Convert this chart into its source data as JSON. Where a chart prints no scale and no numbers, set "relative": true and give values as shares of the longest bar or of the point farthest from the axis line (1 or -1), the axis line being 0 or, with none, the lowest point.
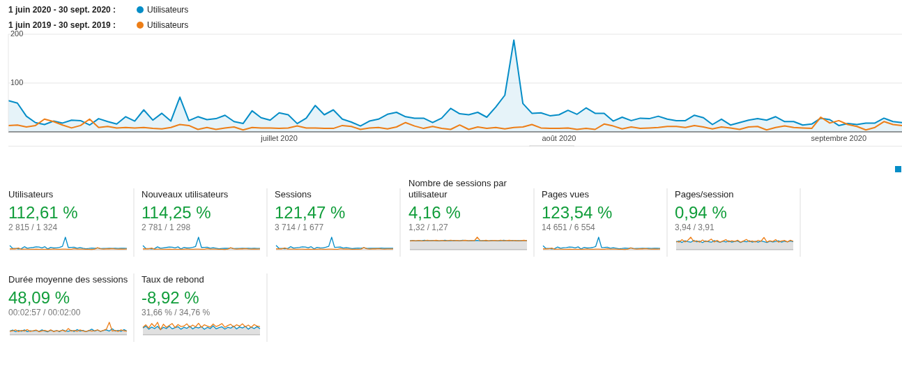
{
  "chart_data": [
    {
      "type": "line",
      "legend": "top left",
      "grid": "y",
      "annotations": [
        "1 juin 2020 - 30 sept. 2020 :",
        "1 juin 2019 - 30 sept. 2019 :"
      ],
      "x": [
        "2020-06-01",
        "2020-06-02",
        "2020-06-03",
        "2020-06-04",
        "2020-06-05",
        "2020-06-06",
        "2020-06-07",
        "2020-06-08",
        "2020-06-09",
        "2020-06-10",
        "2020-06-11",
        "2020-06-12",
        "2020-06-13",
        "2020-06-14",
        "2020-06-15",
        "2020-06-16",
        "2020-06-17",
        "2020-06-18",
        "2020-06-19",
        "2020-06-20",
        "2020-06-21",
        "2020-06-22",
        "2020-06-23",
        "2020-06-24",
        "2020-06-25",
        "2020-06-26",
        "2020-06-27",
        "2020-06-28",
        "2020-06-29",
        "2020-06-30",
        "2020-07-01",
        "2020-07-02",
        "2020-07-03",
        "2020-07-04",
        "2020-07-05",
        "2020-07-06",
        "2020-07-07",
        "2020-07-08",
        "2020-07-09",
        "2020-07-10",
        "2020-07-11",
        "2020-07-12",
        "2020-07-13",
        "2020-07-14",
        "2020-07-15",
        "2020-07-16",
        "2020-07-17",
        "2020-07-18",
        "2020-07-19",
        "2020-07-20",
        "2020-07-21",
        "2020-07-22",
        "2020-07-23",
        "2020-07-24",
        "2020-07-25",
        "2020-07-26",
        "2020-07-27",
        "2020-07-28",
        "2020-07-29",
        "2020-07-30",
        "2020-07-31",
        "2020-08-01",
        "2020-08-02",
        "2020-08-03",
        "2020-08-04",
        "2020-08-05",
        "2020-08-06",
        "2020-08-07",
        "2020-08-08",
        "2020-08-09",
        "2020-08-10",
        "2020-08-11",
        "2020-08-12",
        "2020-08-13",
        "2020-08-14",
        "2020-08-15",
        "2020-08-16",
        "2020-08-17",
        "2020-08-18",
        "2020-08-19",
        "2020-08-20",
        "2020-08-21",
        "2020-08-22",
        "2020-08-23",
        "2020-08-24",
        "2020-08-25",
        "2020-08-26",
        "2020-08-27",
        "2020-08-28",
        "2020-08-29",
        "2020-08-30",
        "2020-08-31",
        "2020-09-01",
        "2020-09-02",
        "2020-09-03",
        "2020-09-04",
        "2020-09-05",
        "2020-09-06",
        "2020-09-07",
        "2020-09-08"
      ],
      "xlim": [
        "2020-06-01",
        "2020-09-08"
      ],
      "xticks": [
        {
          "value": "2020-07-01",
          "label": "juillet 2020"
        },
        {
          "value": "2020-08-01",
          "label": "août 2020"
        },
        {
          "value": "2020-09-01",
          "label": "septembre 2020"
        }
      ],
      "ylim": [
        0,
        200
      ],
      "yticks": [
        100,
        200
      ],
      "series": [
        {
          "name": "Utilisateurs",
          "type": "area",
          "color": "#058dc7",
          "values": [
            64,
            59,
            32,
            19,
            15,
            22,
            18,
            24,
            23,
            14,
            27,
            21,
            16,
            31,
            22,
            45,
            24,
            38,
            22,
            71,
            23,
            31,
            25,
            27,
            34,
            21,
            17,
            43,
            29,
            24,
            39,
            35,
            17,
            28,
            54,
            35,
            45,
            26,
            20,
            12,
            22,
            26,
            36,
            40,
            31,
            28,
            28,
            19,
            28,
            48,
            37,
            35,
            40,
            30,
            51,
            75,
            188,
            58,
            38,
            39,
            33,
            35,
            44,
            36,
            49,
            38,
            38,
            22,
            30,
            23,
            28,
            27,
            32,
            26,
            23,
            23,
            34,
            29,
            15,
            26,
            14,
            19,
            24,
            27,
            24,
            31,
            21,
            21,
            14,
            16,
            28,
            25,
            13,
            17,
            15,
            18,
            18,
            28,
            21,
            19
          ]
        },
        {
          "name": "Utilisateurs",
          "type": "line",
          "color": "#ed7e17",
          "values": [
            13,
            14,
            10,
            13,
            26,
            21,
            14,
            8,
            13,
            26,
            9,
            11,
            8,
            9,
            8,
            9,
            7,
            6,
            9,
            15,
            13,
            5,
            9,
            5,
            8,
            10,
            4,
            9,
            8,
            8,
            7,
            8,
            12,
            8,
            8,
            7,
            7,
            13,
            11,
            5,
            8,
            9,
            6,
            10,
            19,
            12,
            7,
            11,
            7,
            5,
            14,
            5,
            10,
            7,
            9,
            6,
            9,
            10,
            15,
            8,
            7,
            7,
            8,
            5,
            7,
            5,
            16,
            12,
            6,
            10,
            7,
            8,
            9,
            11,
            11,
            9,
            13,
            10,
            6,
            10,
            8,
            5,
            10,
            11,
            4,
            9,
            12,
            9,
            8,
            7,
            30,
            18,
            23,
            15,
            11,
            4,
            9,
            21,
            15,
            13
          ]
        }
      ]
    },
    {
      "type": "line",
      "relative": true,
      "title": "Utilisateurs",
      "subtitle": "112,61 %",
      "annotations": [
        "2 815 / 1 324"
      ],
      "categories": [
        null,
        null,
        null,
        null,
        null,
        null,
        null,
        null,
        null,
        null,
        null,
        null,
        null,
        null,
        null,
        null,
        null,
        null,
        null,
        null,
        null,
        null,
        null,
        null,
        null,
        null,
        null,
        null,
        null,
        null,
        null,
        null,
        null,
        null,
        null,
        null,
        null,
        null,
        null,
        null,
        null
      ],
      "series": [
        {
          "color": "#058dc7",
          "values": [
            0.34,
            0.1,
            0.1,
            0.07,
            0.09,
            0.24,
            0.12,
            0.16,
            0.18,
            0.23,
            0.21,
            0.15,
            0.24,
            0.06,
            0.19,
            0.15,
            0.15,
            0.19,
            0.27,
            1,
            0.18,
            0.19,
            0.2,
            0.12,
            0.17,
            0.12,
            0.08,
            0.1,
            0.13,
            0.11,
            0.15,
            0.09,
            0.1,
            0.1,
            0.11,
            0.1,
            0.12,
            0.1,
            0.11,
            0.11,
            0.1
          ]
        },
        {
          "color": "#ed7e17",
          "values": [
            0.07,
            0.07,
            0.07,
            0.14,
            0.04,
            0.05,
            0.05,
            0.03,
            0.04,
            0.05,
            0.04,
            0.04,
            0.04,
            0.03,
            0.03,
            0.06,
            0.04,
            0.03,
            0.05,
            0.05,
            0.04,
            0.03,
            0.09,
            0.05,
            0.05,
            0.05,
            0.03,
            0.03,
            0.02,
            0.05,
            0.16,
            0.08,
            0.05,
            0.07,
            0.07,
            0.09,
            0.06,
            0.05,
            0.06,
            0.05,
            0.06
          ]
        }
      ]
    },
    {
      "type": "line",
      "relative": true,
      "title": "Nouveaux utilisateurs",
      "subtitle": "114,25 %",
      "annotations": [
        "2 781 / 1 298"
      ],
      "categories": [
        null,
        null,
        null,
        null,
        null,
        null,
        null,
        null,
        null,
        null,
        null,
        null,
        null,
        null,
        null,
        null,
        null,
        null,
        null,
        null,
        null,
        null,
        null,
        null,
        null,
        null,
        null,
        null,
        null,
        null,
        null,
        null,
        null,
        null,
        null,
        null,
        null,
        null,
        null,
        null,
        null
      ],
      "series": [
        {
          "color": "#058dc7",
          "values": [
            0.33,
            0.1,
            0.09,
            0.07,
            0.09,
            0.23,
            0.12,
            0.15,
            0.18,
            0.22,
            0.2,
            0.15,
            0.23,
            0.06,
            0.18,
            0.15,
            0.14,
            0.19,
            0.26,
            1,
            0.18,
            0.19,
            0.2,
            0.12,
            0.16,
            0.12,
            0.08,
            0.1,
            0.12,
            0.11,
            0.15,
            0.09,
            0.1,
            0.1,
            0.11,
            0.1,
            0.12,
            0.1,
            0.11,
            0.1,
            0.1
          ]
        },
        {
          "color": "#ed7e17",
          "values": [
            0.07,
            0.07,
            0.07,
            0.13,
            0.04,
            0.05,
            0.05,
            0.03,
            0.04,
            0.05,
            0.04,
            0.04,
            0.04,
            0.03,
            0.03,
            0.06,
            0.04,
            0.03,
            0.05,
            0.05,
            0.04,
            0.03,
            0.09,
            0.05,
            0.05,
            0.05,
            0.03,
            0.03,
            0.02,
            0.05,
            0.16,
            0.08,
            0.05,
            0.07,
            0.07,
            0.09,
            0.06,
            0.05,
            0.06,
            0.05,
            0.06
          ]
        }
      ]
    },
    {
      "type": "line",
      "relative": true,
      "title": "Sessions",
      "subtitle": "121,47 %",
      "annotations": [
        "3 714 / 1 677"
      ],
      "categories": [
        null,
        null,
        null,
        null,
        null,
        null,
        null,
        null,
        null,
        null,
        null,
        null,
        null,
        null,
        null,
        null,
        null,
        null,
        null,
        null,
        null,
        null,
        null,
        null,
        null,
        null,
        null,
        null,
        null,
        null,
        null,
        null,
        null,
        null,
        null,
        null,
        null,
        null,
        null,
        null,
        null
      ],
      "series": [
        {
          "color": "#058dc7",
          "values": [
            0.35,
            0.11,
            0.1,
            0.08,
            0.1,
            0.24,
            0.13,
            0.16,
            0.19,
            0.23,
            0.21,
            0.16,
            0.24,
            0.07,
            0.19,
            0.16,
            0.15,
            0.2,
            0.27,
            1,
            0.19,
            0.2,
            0.21,
            0.13,
            0.17,
            0.13,
            0.09,
            0.11,
            0.13,
            0.12,
            0.16,
            0.1,
            0.11,
            0.11,
            0.12,
            0.11,
            0.13,
            0.11,
            0.12,
            0.11,
            0.11
          ]
        },
        {
          "color": "#ed7e17",
          "values": [
            0.07,
            0.08,
            0.07,
            0.14,
            0.05,
            0.05,
            0.05,
            0.04,
            0.05,
            0.05,
            0.04,
            0.05,
            0.04,
            0.03,
            0.04,
            0.06,
            0.04,
            0.03,
            0.05,
            0.05,
            0.04,
            0.04,
            0.09,
            0.05,
            0.06,
            0.05,
            0.04,
            0.03,
            0.03,
            0.05,
            0.17,
            0.08,
            0.05,
            0.07,
            0.07,
            0.09,
            0.06,
            0.05,
            0.06,
            0.06,
            0.06
          ]
        }
      ]
    },
    {
      "type": "line",
      "relative": true,
      "title": "Nombre de sessions par utilisateur",
      "subtitle": "4,16 %",
      "annotations": [
        "1,32 / 1,27"
      ],
      "categories": [
        null,
        null,
        null,
        null,
        null,
        null,
        null,
        null,
        null,
        null,
        null,
        null,
        null,
        null,
        null,
        null,
        null,
        null,
        null,
        null,
        null,
        null,
        null,
        null,
        null,
        null,
        null,
        null,
        null,
        null,
        null,
        null,
        null,
        null,
        null,
        null,
        null,
        null,
        null,
        null,
        null
      ],
      "series": [
        {
          "type": "area",
          "color": "#058dc7",
          "values": [
            0.72,
            0.74,
            0.7,
            0.73,
            0.72,
            0.75,
            0.71,
            0.73,
            0.74,
            0.72,
            0.7,
            0.73,
            0.75,
            0.72,
            0.71,
            0.74,
            0.73,
            0.72,
            0.75,
            0.74,
            0.72,
            0.71,
            0.73,
            0.74,
            0.72,
            0.73,
            0.7,
            0.72,
            0.74,
            0.73,
            0.71,
            0.72,
            0.75,
            0.73,
            0.72,
            0.74,
            0.71,
            0.73,
            0.72,
            0.74,
            0.73
          ]
        },
        {
          "color": "#ed7e17",
          "values": [
            0.7,
            0.73,
            0.72,
            0.74,
            0.7,
            0.72,
            0.76,
            0.71,
            0.73,
            0.75,
            0.72,
            0.74,
            0.7,
            0.73,
            0.76,
            0.72,
            0.74,
            0.71,
            0.73,
            0.75,
            0.72,
            0.74,
            0.71,
            1,
            0.73,
            0.72,
            0.75,
            0.7,
            0.73,
            0.74,
            0.72,
            0.76,
            0.71,
            0.73,
            0.75,
            0.72,
            0.74,
            0.7,
            0.73,
            0.75,
            0.72
          ]
        }
      ]
    },
    {
      "type": "line",
      "relative": true,
      "title": "Pages vues",
      "subtitle": "123,54 %",
      "annotations": [
        "14 651 / 6 554"
      ],
      "categories": [
        null,
        null,
        null,
        null,
        null,
        null,
        null,
        null,
        null,
        null,
        null,
        null,
        null,
        null,
        null,
        null,
        null,
        null,
        null,
        null,
        null,
        null,
        null,
        null,
        null,
        null,
        null,
        null,
        null,
        null,
        null,
        null,
        null,
        null,
        null,
        null,
        null,
        null,
        null,
        null,
        null
      ],
      "series": [
        {
          "color": "#058dc7",
          "values": [
            0.32,
            0.1,
            0.1,
            0.07,
            0.09,
            0.22,
            0.12,
            0.16,
            0.17,
            0.22,
            0.2,
            0.15,
            0.23,
            0.06,
            0.18,
            0.14,
            0.15,
            0.18,
            0.26,
            1,
            0.17,
            0.18,
            0.2,
            0.12,
            0.16,
            0.12,
            0.08,
            0.1,
            0.13,
            0.11,
            0.14,
            0.09,
            0.1,
            0.1,
            0.11,
            0.1,
            0.12,
            0.1,
            0.11,
            0.11,
            0.1
          ]
        },
        {
          "color": "#ed7e17",
          "values": [
            0.07,
            0.07,
            0.08,
            0.13,
            0.04,
            0.05,
            0.05,
            0.03,
            0.04,
            0.05,
            0.04,
            0.04,
            0.04,
            0.03,
            0.03,
            0.06,
            0.04,
            0.03,
            0.05,
            0.05,
            0.04,
            0.03,
            0.08,
            0.05,
            0.05,
            0.05,
            0.03,
            0.03,
            0.02,
            0.05,
            0.15,
            0.08,
            0.05,
            0.07,
            0.07,
            0.09,
            0.06,
            0.05,
            0.06,
            0.05,
            0.06
          ]
        }
      ]
    },
    {
      "type": "line",
      "relative": true,
      "title": "Pages/session",
      "subtitle": "0,94 %",
      "annotations": [
        "3,94 / 3,91"
      ],
      "categories": [
        null,
        null,
        null,
        null,
        null,
        null,
        null,
        null,
        null,
        null,
        null,
        null,
        null,
        null,
        null,
        null,
        null,
        null,
        null,
        null,
        null,
        null,
        null,
        null,
        null,
        null,
        null,
        null,
        null,
        null,
        null,
        null,
        null,
        null,
        null,
        null,
        null,
        null,
        null,
        null,
        null
      ],
      "series": [
        {
          "type": "area",
          "color": "#058dc7",
          "values": [
            0.62,
            0.7,
            0.58,
            0.72,
            0.65,
            0.6,
            0.75,
            0.63,
            0.68,
            0.57,
            0.7,
            0.64,
            0.6,
            0.73,
            0.66,
            0.59,
            0.69,
            0.62,
            0.71,
            0.6,
            0.66,
            0.7,
            0.58,
            0.68,
            0.63,
            0.72,
            0.6,
            0.67,
            0.61,
            0.7,
            0.64,
            0.58,
            0.69,
            0.62,
            0.66,
            0.71,
            0.6,
            0.68,
            0.63,
            0.7,
            0.65
          ]
        },
        {
          "color": "#ed7e17",
          "values": [
            0.68,
            0.6,
            0.8,
            0.62,
            0.75,
            1,
            0.66,
            0.72,
            0.6,
            0.78,
            0.64,
            0.7,
            0.85,
            0.62,
            0.74,
            0.6,
            0.7,
            0.8,
            0.63,
            0.72,
            0.66,
            0.76,
            0.6,
            0.7,
            0.82,
            0.64,
            0.7,
            0.62,
            0.75,
            0.68,
            0.98,
            0.62,
            0.72,
            0.66,
            0.8,
            0.6,
            0.7,
            0.74,
            0.62,
            0.76,
            0.68
          ]
        }
      ]
    },
    {
      "type": "line",
      "relative": true,
      "title": "Durée moyenne des sessions",
      "subtitle": "48,09 %",
      "annotations": [
        "00:02:57 / 00:02:00"
      ],
      "categories": [
        null,
        null,
        null,
        null,
        null,
        null,
        null,
        null,
        null,
        null,
        null,
        null,
        null,
        null,
        null,
        null,
        null,
        null,
        null,
        null,
        null,
        null,
        null,
        null,
        null,
        null,
        null,
        null,
        null,
        null,
        null,
        null,
        null,
        null,
        null,
        null,
        null,
        null,
        null,
        null,
        null
      ],
      "series": [
        {
          "type": "area",
          "color": "#058dc7",
          "values": [
            0.3,
            0.38,
            0.25,
            0.35,
            0.28,
            0.4,
            0.26,
            0.33,
            0.3,
            0.36,
            0.27,
            0.4,
            0.3,
            0.25,
            0.37,
            0.29,
            0.34,
            0.26,
            0.39,
            0.31,
            0.28,
            0.35,
            0.27,
            0.42,
            0.3,
            0.36,
            0.26,
            0.33,
            0.45,
            0.3,
            0.38,
            0.27,
            0.35,
            0.4,
            0.3,
            0.48,
            0.3,
            0.36,
            0.28,
            0.42,
            0.3
          ]
        },
        {
          "color": "#ed7e17",
          "values": [
            0.28,
            0.32,
            0.4,
            0.26,
            0.35,
            0.3,
            0.42,
            0.27,
            0.33,
            0.38,
            0.25,
            0.31,
            0.36,
            0.28,
            0.4,
            0.26,
            0.33,
            0.3,
            0.37,
            0.27,
            0.5,
            0.3,
            0.35,
            0.28,
            0.4,
            0.31,
            0.26,
            0.36,
            0.3,
            0.33,
            0.4,
            0.28,
            0.35,
            0.45,
            1,
            0.3,
            0.36,
            0.27,
            0.4,
            0.32,
            0.3
          ]
        }
      ]
    },
    {
      "type": "line",
      "relative": true,
      "title": "Taux de rebond",
      "subtitle": "-8,92 %",
      "annotations": [
        "31,66 % / 34,76 %"
      ],
      "categories": [
        null,
        null,
        null,
        null,
        null,
        null,
        null,
        null,
        null,
        null,
        null,
        null,
        null,
        null,
        null,
        null,
        null,
        null,
        null,
        null,
        null,
        null,
        null,
        null,
        null,
        null,
        null,
        null,
        null,
        null,
        null,
        null,
        null,
        null,
        null,
        null,
        null,
        null,
        null,
        null,
        null
      ],
      "series": [
        {
          "type": "area",
          "color": "#058dc7",
          "values": [
            0.55,
            0.7,
            0.45,
            0.62,
            0.5,
            0.68,
            0.42,
            0.6,
            0.5,
            0.7,
            0.48,
            0.58,
            0.65,
            0.45,
            0.6,
            0.52,
            0.7,
            0.47,
            0.62,
            0.55,
            0.66,
            0.44,
            0.6,
            0.5,
            0.72,
            0.48,
            0.58,
            0.64,
            0.46,
            0.6,
            0.53,
            0.7,
            0.47,
            0.63,
            0.55,
            0.68,
            0.45,
            0.62,
            0.5,
            0.66,
            0.48
          ]
        },
        {
          "color": "#ed7e17",
          "values": [
            0.6,
            0.8,
            0.55,
            0.9,
            0.65,
            1,
            0.4,
            0.85,
            0.6,
            0.75,
            0.9,
            0.58,
            0.82,
            0.66,
            0.7,
            0.88,
            0.6,
            0.78,
            0.64,
            0.92,
            0.6,
            0.8,
            0.7,
            0.62,
            0.86,
            0.66,
            0.76,
            0.9,
            0.6,
            0.74,
            0.84,
            0.62,
            0.8,
            0.7,
            0.88,
            0.64,
            0.78,
            0.6,
            0.82,
            0.7,
            0.66
          ]
        }
      ]
    }
  ]
}
